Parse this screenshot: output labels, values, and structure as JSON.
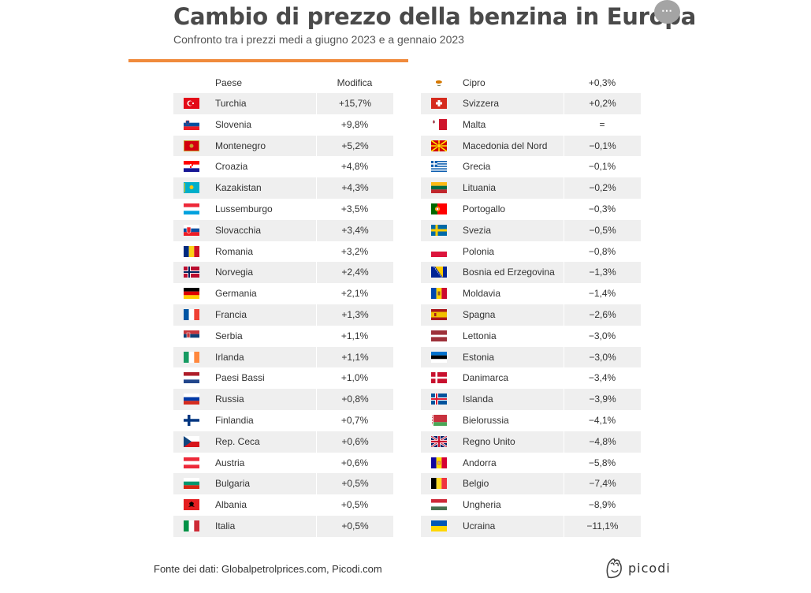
{
  "header": {
    "title": "Cambio di prezzo della benzina in Europa",
    "subtitle": "Confronto tra i prezzi medi a giugno 2023 e a gennaio 2023",
    "menu_icon": "ellipsis-icon",
    "menu_label": "⋯",
    "accent_color": "#f08a3c"
  },
  "table": {
    "col_country": "Paese",
    "col_change": "Modifica",
    "left": [
      {
        "country": "Turchia",
        "change": "+15,7%",
        "flag": "turkey-flag-icon"
      },
      {
        "country": "Slovenia",
        "change": "+9,8%",
        "flag": "slovenia-flag-icon"
      },
      {
        "country": "Montenegro",
        "change": "+5,2%",
        "flag": "montenegro-flag-icon"
      },
      {
        "country": "Croazia",
        "change": "+4,8%",
        "flag": "croatia-flag-icon"
      },
      {
        "country": "Kazakistan",
        "change": "+4,3%",
        "flag": "kazakhstan-flag-icon"
      },
      {
        "country": "Lussemburgo",
        "change": "+3,5%",
        "flag": "luxembourg-flag-icon"
      },
      {
        "country": "Slovacchia",
        "change": "+3,4%",
        "flag": "slovakia-flag-icon"
      },
      {
        "country": "Romania",
        "change": "+3,2%",
        "flag": "romania-flag-icon"
      },
      {
        "country": "Norvegia",
        "change": "+2,4%",
        "flag": "norway-flag-icon"
      },
      {
        "country": "Germania",
        "change": "+2,1%",
        "flag": "germany-flag-icon"
      },
      {
        "country": "Francia",
        "change": "+1,3%",
        "flag": "france-flag-icon"
      },
      {
        "country": "Serbia",
        "change": "+1,1%",
        "flag": "serbia-flag-icon"
      },
      {
        "country": "Irlanda",
        "change": "+1,1%",
        "flag": "ireland-flag-icon"
      },
      {
        "country": "Paesi Bassi",
        "change": "+1,0%",
        "flag": "netherlands-flag-icon"
      },
      {
        "country": "Russia",
        "change": "+0,8%",
        "flag": "russia-flag-icon"
      },
      {
        "country": "Finlandia",
        "change": "+0,7%",
        "flag": "finland-flag-icon"
      },
      {
        "country": "Rep. Ceca",
        "change": "+0,6%",
        "flag": "czechia-flag-icon"
      },
      {
        "country": "Austria",
        "change": "+0,6%",
        "flag": "austria-flag-icon"
      },
      {
        "country": "Bulgaria",
        "change": "+0,5%",
        "flag": "bulgaria-flag-icon"
      },
      {
        "country": "Albania",
        "change": "+0,5%",
        "flag": "albania-flag-icon"
      },
      {
        "country": "Italia",
        "change": "+0,5%",
        "flag": "italy-flag-icon"
      }
    ],
    "right": [
      {
        "country": "Cipro",
        "change": "+0,3%",
        "flag": "cyprus-flag-icon"
      },
      {
        "country": "Svizzera",
        "change": "+0,2%",
        "flag": "switzerland-flag-icon"
      },
      {
        "country": "Malta",
        "change": "=",
        "flag": "malta-flag-icon"
      },
      {
        "country": "Macedonia del Nord",
        "change": "−0,1%",
        "flag": "north-macedonia-flag-icon"
      },
      {
        "country": "Grecia",
        "change": "−0,1%",
        "flag": "greece-flag-icon"
      },
      {
        "country": "Lituania",
        "change": "−0,2%",
        "flag": "lithuania-flag-icon"
      },
      {
        "country": "Portogallo",
        "change": "−0,3%",
        "flag": "portugal-flag-icon"
      },
      {
        "country": "Svezia",
        "change": "−0,5%",
        "flag": "sweden-flag-icon"
      },
      {
        "country": "Polonia",
        "change": "−0,8%",
        "flag": "poland-flag-icon"
      },
      {
        "country": "Bosnia ed Erzegovina",
        "change": "−1,3%",
        "flag": "bosnia-flag-icon"
      },
      {
        "country": "Moldavia",
        "change": "−1,4%",
        "flag": "moldova-flag-icon"
      },
      {
        "country": "Spagna",
        "change": "−2,6%",
        "flag": "spain-flag-icon"
      },
      {
        "country": "Lettonia",
        "change": "−3,0%",
        "flag": "latvia-flag-icon"
      },
      {
        "country": "Estonia",
        "change": "−3,0%",
        "flag": "estonia-flag-icon"
      },
      {
        "country": "Danimarca",
        "change": "−3,4%",
        "flag": "denmark-flag-icon"
      },
      {
        "country": "Islanda",
        "change": "−3,9%",
        "flag": "iceland-flag-icon"
      },
      {
        "country": "Bielorussia",
        "change": "−4,1%",
        "flag": "belarus-flag-icon"
      },
      {
        "country": "Regno Unito",
        "change": "−4,8%",
        "flag": "uk-flag-icon"
      },
      {
        "country": "Andorra",
        "change": "−5,8%",
        "flag": "andorra-flag-icon"
      },
      {
        "country": "Belgio",
        "change": "−7,4%",
        "flag": "belgium-flag-icon"
      },
      {
        "country": "Ungheria",
        "change": "−8,9%",
        "flag": "hungary-flag-icon"
      },
      {
        "country": "Ucraina",
        "change": "−11,1%",
        "flag": "ukraine-flag-icon"
      }
    ]
  },
  "footer": {
    "source": "Fonte dei dati: Globalpetrolprices.com, Picodi.com",
    "logo_text": "picodi",
    "logo_icon": "picodi-logo-icon"
  }
}
